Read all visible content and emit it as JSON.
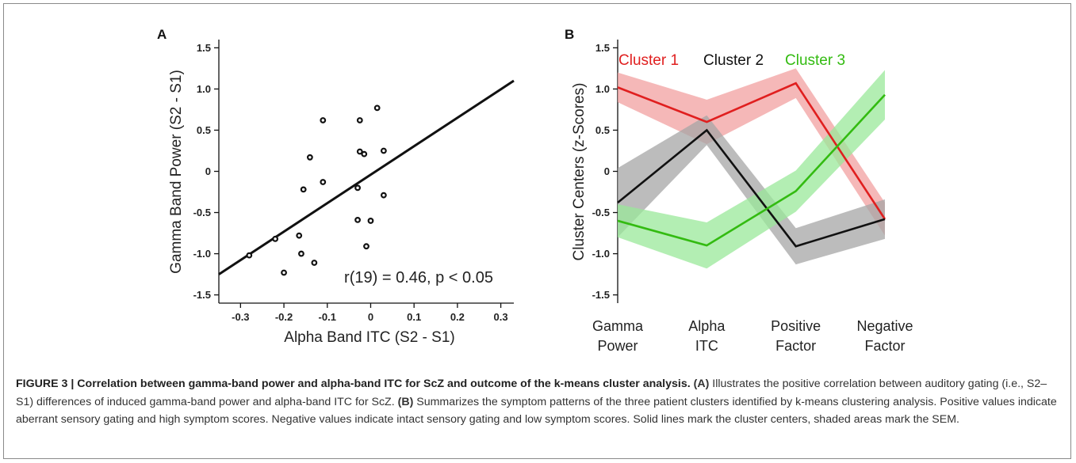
{
  "chart_data": [
    {
      "panel": "A",
      "type": "scatter",
      "xlabel": "Alpha Band ITC (S2 - S1)",
      "ylabel": "Gamma Band Power (S2 - S1)",
      "xlim": [
        -0.35,
        0.33
      ],
      "ylim": [
        -1.6,
        1.6
      ],
      "xticks": [
        "-0.3",
        "-0.2",
        "-0.1",
        "0",
        "0.1",
        "0.2",
        "0.3"
      ],
      "xtick_values": [
        -0.3,
        -0.2,
        -0.1,
        0,
        0.1,
        0.2,
        0.3
      ],
      "yticks": [
        "1.5",
        "1.0",
        "0.5",
        "0",
        "-0.5",
        "-1.0",
        "-1.5"
      ],
      "ytick_values": [
        1.5,
        1.0,
        0.5,
        0,
        -0.5,
        -1.0,
        -1.5
      ],
      "points": [
        {
          "x": -0.28,
          "y": -1.02
        },
        {
          "x": -0.22,
          "y": -0.82
        },
        {
          "x": -0.2,
          "y": -1.23
        },
        {
          "x": -0.165,
          "y": -0.78
        },
        {
          "x": -0.16,
          "y": -1.0
        },
        {
          "x": -0.13,
          "y": -1.11
        },
        {
          "x": -0.155,
          "y": -0.22
        },
        {
          "x": -0.14,
          "y": 0.17
        },
        {
          "x": -0.11,
          "y": -0.13
        },
        {
          "x": -0.11,
          "y": 0.62
        },
        {
          "x": -0.025,
          "y": 0.62
        },
        {
          "x": -0.025,
          "y": 0.24
        },
        {
          "x": -0.015,
          "y": 0.21
        },
        {
          "x": 0.015,
          "y": 0.77
        },
        {
          "x": 0.03,
          "y": 0.25
        },
        {
          "x": -0.03,
          "y": -0.2
        },
        {
          "x": 0.03,
          "y": -0.29
        },
        {
          "x": -0.03,
          "y": -0.59
        },
        {
          "x": 0.0,
          "y": -0.6
        },
        {
          "x": -0.01,
          "y": -0.91
        }
      ],
      "fit_line": {
        "x": [
          -0.35,
          0.33
        ],
        "y": [
          -1.25,
          1.1
        ]
      },
      "annotation": "r(19) = 0.46, p < 0.05"
    },
    {
      "panel": "B",
      "type": "line",
      "ylabel": "Cluster Centers (z-Scores)",
      "ylim": [
        -1.6,
        1.6
      ],
      "yticks": [
        "1.5",
        "1.0",
        "0.5",
        "0",
        "-0.5",
        "-1.0",
        "-1.5"
      ],
      "ytick_values": [
        1.5,
        1.0,
        0.5,
        0,
        -0.5,
        -1.0,
        -1.5
      ],
      "categories": [
        {
          "line1": "Gamma",
          "line2": "Power"
        },
        {
          "line1": "Alpha",
          "line2": "ITC"
        },
        {
          "line1": "Positive",
          "line2": "Factor"
        },
        {
          "line1": "Negative",
          "line2": "Factor"
        }
      ],
      "series": [
        {
          "name": "Cluster 1",
          "color": "#e01f1f",
          "band": "#f2a0a0",
          "values": [
            1.02,
            0.6,
            1.07,
            -0.58
          ],
          "sem": [
            0.18,
            0.27,
            0.18,
            0.2
          ]
        },
        {
          "name": "Cluster 2",
          "color": "#111111",
          "band": "#a6a6a6",
          "values": [
            -0.38,
            0.5,
            -0.91,
            -0.58
          ],
          "sem": [
            0.42,
            0.18,
            0.22,
            0.24
          ]
        },
        {
          "name": "Cluster 3",
          "color": "#33bb11",
          "band": "#9ae89a",
          "values": [
            -0.6,
            -0.9,
            -0.24,
            0.93
          ],
          "sem": [
            0.2,
            0.28,
            0.25,
            0.3
          ]
        }
      ]
    }
  ],
  "caption": {
    "title": "FIGURE 3 | Correlation between gamma-band power and alpha-band ITC for ScZ and outcome of the k-means cluster analysis.",
    "ref_a": "(A)",
    "text_a": " Illustrates the positive correlation between auditory gating (i.e., S2–S1) differences of induced gamma-band power and alpha-band ITC for ScZ. ",
    "ref_b": "(B)",
    "text_b": " Summarizes the symptom patterns of the three patient clusters identified by k-means clustering analysis. Positive values indicate aberrant sensory gating and high symptom scores. Negative values indicate intact sensory gating and low symptom scores. Solid lines mark the cluster centers, shaded areas mark the SEM."
  }
}
